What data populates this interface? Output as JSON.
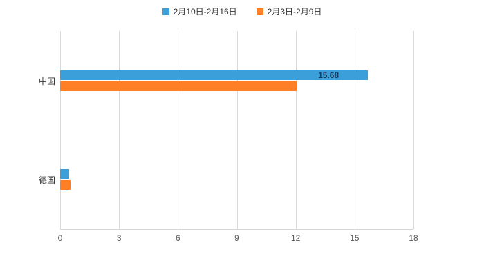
{
  "chart_data": {
    "type": "bar",
    "orientation": "horizontal",
    "title": "",
    "categories": [
      "中国",
      "德国"
    ],
    "series": [
      {
        "name": "2月10日-2月16日",
        "color": "#3BA0D9",
        "values": [
          15.68,
          0.46
        ]
      },
      {
        "name": "2月3日-2月9日",
        "color": "#FF7F27",
        "values": [
          12.05,
          0.53
        ]
      }
    ],
    "xlim": [
      0,
      18
    ],
    "xticks": [
      0,
      3,
      6,
      9,
      12,
      15,
      18
    ],
    "grid": true,
    "legend_position": "top",
    "data_labels": [
      {
        "series": 0,
        "category": 0,
        "text": "15.68"
      }
    ]
  }
}
